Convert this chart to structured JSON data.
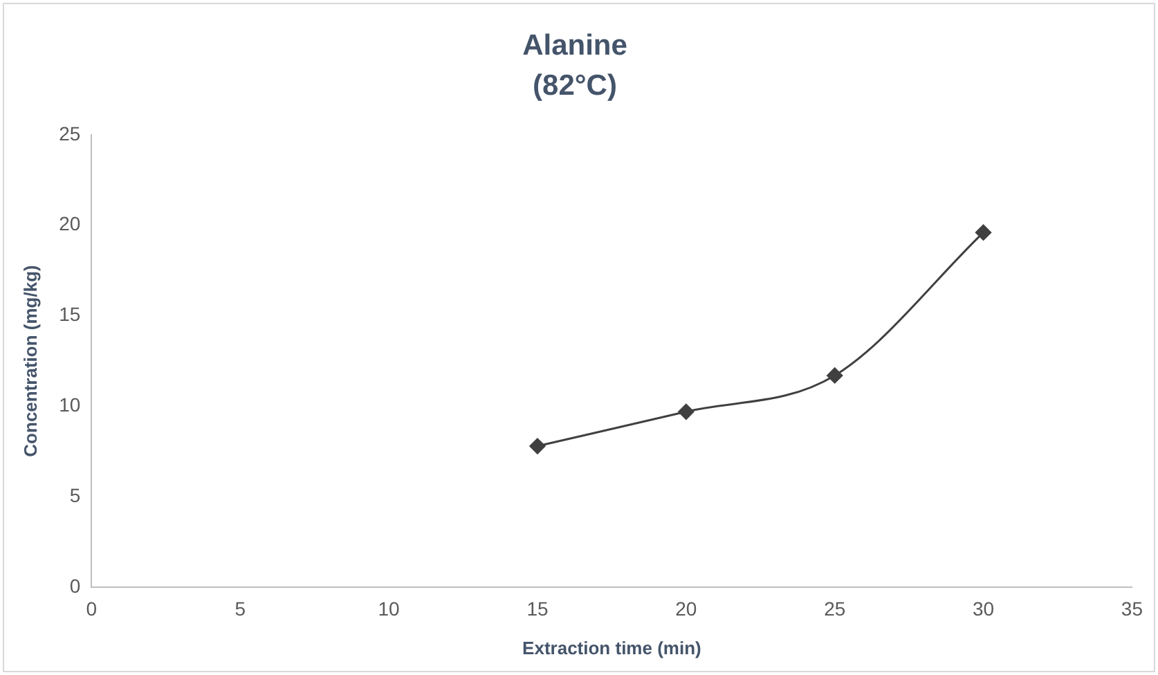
{
  "chart_data": {
    "type": "line",
    "title": "Alanine",
    "subtitle": "(82°C)",
    "xlabel": "Extraction time (min)",
    "ylabel": "Concentration (mg/kg)",
    "x": [
      15,
      20,
      25,
      30
    ],
    "series": [
      {
        "color": "#404040",
        "values": [
          7.8,
          9.7,
          11.7,
          19.6
        ]
      }
    ],
    "xlim": [
      0,
      35
    ],
    "xticks": [
      0,
      5,
      10,
      15,
      20,
      25,
      30,
      35
    ],
    "ylim": [
      0,
      25
    ],
    "yticks": [
      0,
      5,
      10,
      15,
      20,
      25
    ],
    "grid": false,
    "legend": false,
    "marker": "diamond",
    "line_style": "solid"
  }
}
